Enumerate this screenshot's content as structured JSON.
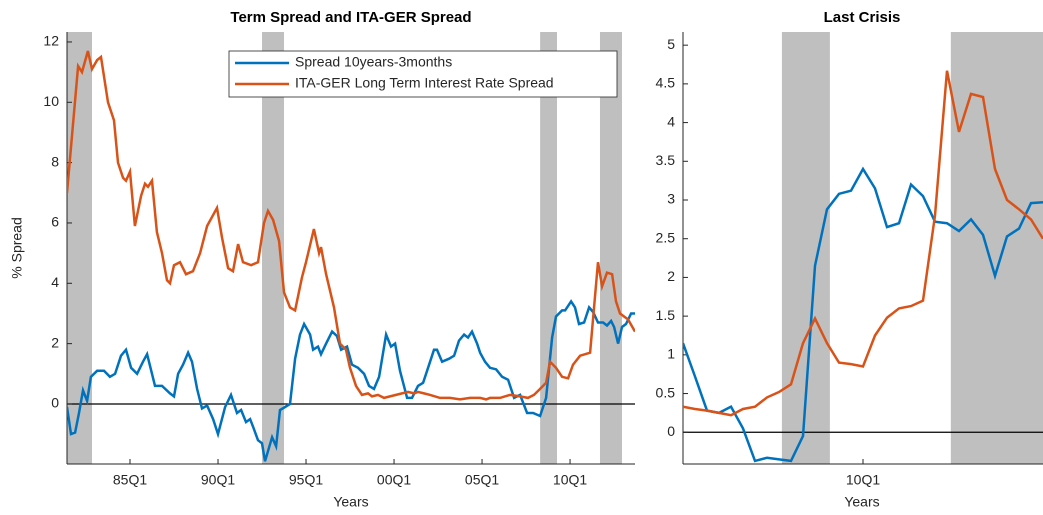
{
  "chart_data": [
    {
      "type": "line",
      "title": "Term Spread and ITA-GER Spread",
      "xlabel": "Years",
      "ylabel": "% Spread",
      "xlim": [
        1981.42,
        2013.69
      ],
      "ylim": [
        -1.99,
        12.33
      ],
      "xticks": [
        {
          "value": 1985,
          "label": "85Q1"
        },
        {
          "value": 1990,
          "label": "90Q1"
        },
        {
          "value": 1995,
          "label": "95Q1"
        },
        {
          "value": 2000,
          "label": "00Q1"
        },
        {
          "value": 2005,
          "label": "05Q1"
        },
        {
          "value": 2010,
          "label": "10Q1"
        }
      ],
      "yticks": [
        0,
        2,
        4,
        6,
        8,
        10,
        12
      ],
      "shaded": [
        [
          1981.42,
          1982.84
        ],
        [
          1992.5,
          1993.75
        ],
        [
          2008.3,
          2009.26
        ],
        [
          2011.7,
          2012.95
        ]
      ],
      "zero_line": true,
      "legend": "top-right",
      "series": [
        {
          "name": "Spread 10years-3months",
          "color": "#0072BD",
          "x": [
            1981.42,
            1981.65,
            1981.88,
            1982.1,
            1982.33,
            1982.56,
            1982.78,
            1983.13,
            1983.52,
            1983.86,
            1984.15,
            1984.49,
            1984.77,
            1985.06,
            1985.4,
            1985.74,
            1985.97,
            1986.25,
            1986.42,
            1986.82,
            1987.27,
            1987.5,
            1987.73,
            1988.01,
            1988.3,
            1988.52,
            1988.81,
            1989.09,
            1989.38,
            1989.72,
            1990.0,
            1990.4,
            1990.74,
            1991.08,
            1991.31,
            1991.59,
            1991.82,
            1991.99,
            1992.27,
            1992.5,
            1992.67,
            1993.07,
            1993.3,
            1993.52,
            1993.81,
            1994.09,
            1994.38,
            1994.66,
            1994.89,
            1995.23,
            1995.4,
            1995.68,
            1995.85,
            1996.14,
            1996.48,
            1996.76,
            1996.99,
            1997.33,
            1997.61,
            1997.95,
            1998.3,
            1998.58,
            1998.86,
            1999.15,
            1999.55,
            1999.83,
            2000.06,
            2000.34,
            2000.74,
            2001.02,
            2001.36,
            2001.65,
            2001.99,
            2002.27,
            2002.44,
            2002.73,
            2003.13,
            2003.41,
            2003.69,
            2003.98,
            2004.2,
            2004.43,
            2004.72,
            2004.89,
            2005.17,
            2005.45,
            2005.8,
            2006.14,
            2006.48,
            2006.82,
            2007.16,
            2007.56,
            2007.9,
            2008.3,
            2008.64,
            2008.98,
            2009.2,
            2009.55,
            2009.72,
            2010.06,
            2010.28,
            2010.51,
            2010.8,
            2011.08,
            2011.31,
            2011.59,
            2011.88,
            2012.1,
            2012.33,
            2012.5,
            2012.73,
            2012.95,
            2013.18,
            2013.47,
            2013.69
          ],
          "values": [
            -0.1,
            -1.0,
            -0.95,
            -0.3,
            0.45,
            0.1,
            0.9,
            1.1,
            1.1,
            0.9,
            1.0,
            1.6,
            1.8,
            1.2,
            1.0,
            1.4,
            1.65,
            1.0,
            0.6,
            0.6,
            0.35,
            0.25,
            1.0,
            1.3,
            1.7,
            1.4,
            0.5,
            -0.15,
            -0.05,
            -0.5,
            -1.0,
            -0.1,
            0.3,
            -0.3,
            -0.2,
            -0.6,
            -0.5,
            -0.75,
            -1.2,
            -1.3,
            -1.9,
            -1.1,
            -1.4,
            -0.2,
            -0.1,
            0,
            1.5,
            2.3,
            2.65,
            2.3,
            1.8,
            1.9,
            1.65,
            2.0,
            2.4,
            2.25,
            1.8,
            1.9,
            1.3,
            1.2,
            1.0,
            0.6,
            0.5,
            0.9,
            2.3,
            1.9,
            2.0,
            1.1,
            0.2,
            0.2,
            0.6,
            0.7,
            1.3,
            1.8,
            1.8,
            1.4,
            1.5,
            1.6,
            2.1,
            2.3,
            2.2,
            2.4,
            2.0,
            1.7,
            1.4,
            1.2,
            1.15,
            0.9,
            0.8,
            0.2,
            0.3,
            -0.3,
            -0.3,
            -0.4,
            0.2,
            2.2,
            2.9,
            3.1,
            3.1,
            3.4,
            3.2,
            2.65,
            2.7,
            3.2,
            3.05,
            2.7,
            2.7,
            2.6,
            2.75,
            2.55,
            2.0,
            2.55,
            2.65,
            3.0,
            3.0
          ]
        },
        {
          "name": "ITA-GER Long Term Interest Rate Spread",
          "color": "#D95319",
          "x": [
            1981.42,
            1982.05,
            1982.27,
            1982.61,
            1982.84,
            1983.13,
            1983.35,
            1983.75,
            1984.09,
            1984.32,
            1984.6,
            1984.77,
            1985.0,
            1985.28,
            1985.63,
            1985.85,
            1986.02,
            1986.25,
            1986.53,
            1986.82,
            1987.1,
            1987.27,
            1987.5,
            1987.84,
            1988.18,
            1988.58,
            1988.98,
            1989.38,
            1989.94,
            1990.23,
            1990.57,
            1990.85,
            1991.14,
            1991.42,
            1991.88,
            1992.27,
            1992.61,
            1992.84,
            1993.13,
            1993.47,
            1993.75,
            1994.09,
            1994.38,
            1994.77,
            1995.0,
            1995.45,
            1995.74,
            1995.85,
            1996.14,
            1996.59,
            1996.93,
            1997.27,
            1997.5,
            1997.84,
            1998.18,
            1998.52,
            1998.75,
            1999.09,
            1999.43,
            1999.77,
            2000.11,
            2000.45,
            2000.8,
            2001.14,
            2001.36,
            2001.7,
            2002.05,
            2002.61,
            2003.18,
            2003.75,
            2004.32,
            2004.89,
            2005.23,
            2005.45,
            2006.02,
            2006.59,
            2007.16,
            2007.61,
            2007.95,
            2008.3,
            2008.64,
            2008.86,
            2009.2,
            2009.55,
            2009.89,
            2010.17,
            2010.57,
            2011.14,
            2011.59,
            2011.82,
            2012.1,
            2012.39,
            2012.61,
            2012.84,
            2013.3,
            2013.69
          ],
          "values": [
            7.0,
            11.2,
            11.0,
            11.7,
            11.1,
            11.4,
            11.5,
            10.0,
            9.4,
            8.0,
            7.5,
            7.4,
            7.7,
            5.9,
            6.9,
            7.3,
            7.2,
            7.4,
            5.7,
            5.0,
            4.1,
            4.0,
            4.6,
            4.7,
            4.3,
            4.4,
            5.0,
            5.9,
            6.5,
            5.5,
            4.5,
            4.4,
            5.3,
            4.7,
            4.6,
            4.7,
            6.0,
            6.4,
            6.1,
            5.4,
            3.7,
            3.2,
            3.1,
            4.2,
            4.7,
            5.8,
            5.0,
            5.2,
            4.3,
            3.2,
            2.0,
            1.8,
            1.2,
            0.6,
            0.3,
            0.35,
            0.25,
            0.3,
            0.2,
            0.25,
            0.3,
            0.35,
            0.4,
            0.35,
            0.4,
            0.35,
            0.3,
            0.2,
            0.2,
            0.15,
            0.2,
            0.2,
            0.15,
            0.2,
            0.2,
            0.3,
            0.25,
            0.2,
            0.3,
            0.5,
            0.7,
            1.4,
            1.2,
            0.9,
            0.85,
            1.3,
            1.6,
            1.7,
            4.7,
            3.9,
            4.35,
            4.3,
            3.4,
            3.0,
            2.8,
            2.4
          ]
        }
      ]
    },
    {
      "type": "line",
      "title": "Last Crisis",
      "xlabel": "Years",
      "xlim": [
        2006.25,
        2013.75
      ],
      "ylim": [
        -0.41,
        5.17
      ],
      "xticks": [
        {
          "value": 2010,
          "label": "10Q1"
        }
      ],
      "yticks": [
        0,
        0.5,
        1,
        1.5,
        2,
        2.5,
        3,
        3.5,
        4,
        4.5,
        5
      ],
      "shaded": [
        [
          2008.31,
          2009.31
        ],
        [
          2011.83,
          2013.75
        ]
      ],
      "zero_line": true,
      "x": [
        2006.25,
        2006.5,
        2006.75,
        2007,
        2007.25,
        2007.5,
        2007.75,
        2008,
        2008.25,
        2008.5,
        2008.75,
        2009,
        2009.25,
        2009.5,
        2009.75,
        2010,
        2010.25,
        2010.5,
        2010.75,
        2011,
        2011.25,
        2011.5,
        2011.75,
        2012,
        2012.25,
        2012.5,
        2012.75,
        2013,
        2013.25,
        2013.5,
        2013.75
      ],
      "series": [
        {
          "name": "Spread 10years-3months",
          "color": "#0072BD",
          "values": [
            1.15,
            0.72,
            0.28,
            0.25,
            0.33,
            0.05,
            -0.37,
            -0.33,
            -0.35,
            -0.37,
            -0.05,
            2.15,
            2.88,
            3.08,
            3.12,
            3.4,
            3.15,
            2.65,
            2.7,
            3.2,
            3.05,
            2.72,
            2.7,
            2.6,
            2.75,
            2.55,
            2.02,
            2.53,
            2.63,
            2.96,
            2.97
          ]
        },
        {
          "name": "ITA-GER Long Term Interest Rate Spread",
          "color": "#D95319",
          "values": [
            0.33,
            0.3,
            0.28,
            0.25,
            0.22,
            0.3,
            0.33,
            0.45,
            0.52,
            0.62,
            1.15,
            1.47,
            1.15,
            0.9,
            0.88,
            0.85,
            1.25,
            1.48,
            1.6,
            1.63,
            1.7,
            2.8,
            4.67,
            3.88,
            4.37,
            4.33,
            3.4,
            3.0,
            2.88,
            2.75,
            2.5
          ]
        }
      ]
    }
  ]
}
